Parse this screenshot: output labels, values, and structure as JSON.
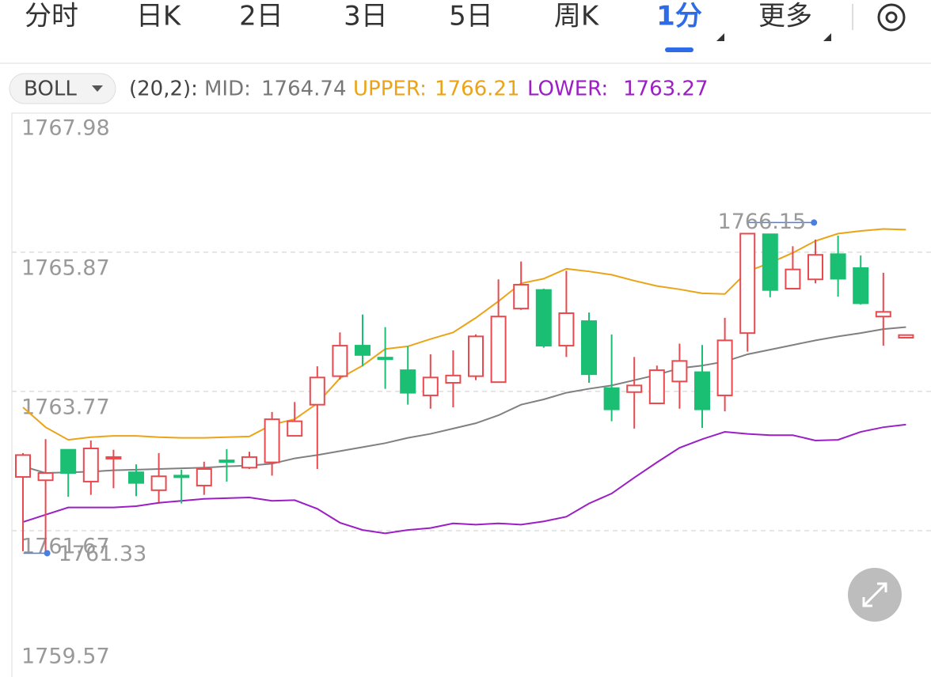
{
  "tabs": [
    "分时",
    "日K",
    "2日",
    "3日",
    "5日",
    "周K",
    "1分",
    "更多"
  ],
  "active_tab": 6,
  "chart_data": {
    "type": "candlestick",
    "indicator": "BOLL",
    "params": "(20,2):",
    "up_color": "#e84a4f",
    "down_color": "#1bbf73",
    "ylim": [
      1759.57,
      1767.98
    ],
    "yticks": [
      1767.98,
      1765.87,
      1763.77,
      1761.67,
      1759.57
    ],
    "grid": true,
    "open": [
      1762.48,
      1762.43,
      1762.89,
      1762.41,
      1762.76,
      1762.55,
      1762.28,
      1762.5,
      1762.35,
      1762.73,
      1762.62,
      1762.7,
      1763.1,
      1763.57,
      1764.0,
      1764.46,
      1764.28,
      1764.09,
      1763.71,
      1763.9,
      1764.0,
      1763.91,
      1765.02,
      1765.3,
      1764.46,
      1764.83,
      1763.82,
      1763.76,
      1763.59,
      1763.92,
      1764.06,
      1763.71,
      1764.65,
      1766.14,
      1765.32,
      1765.46,
      1765.84,
      1765.63,
      1764.9,
      1764.58
    ],
    "high": [
      1762.84,
      1763.05,
      1762.89,
      1763.03,
      1762.89,
      1762.67,
      1762.84,
      1762.59,
      1762.71,
      1762.9,
      1762.86,
      1763.46,
      1763.61,
      1764.15,
      1764.66,
      1764.93,
      1764.74,
      1764.45,
      1764.33,
      1764.39,
      1764.63,
      1765.46,
      1765.73,
      1765.32,
      1765.59,
      1764.96,
      1764.63,
      1764.29,
      1764.16,
      1764.49,
      1764.47,
      1764.88,
      1766.15,
      1766.14,
      1765.96,
      1766.06,
      1766.12,
      1765.82,
      1765.56,
      1764.62
    ],
    "low": [
      1761.36,
      1761.33,
      1762.18,
      1762.21,
      1762.31,
      1762.19,
      1762.1,
      1762.08,
      1762.21,
      1762.41,
      1762.6,
      1762.5,
      1763.1,
      1762.6,
      1763.95,
      1764.15,
      1763.81,
      1763.57,
      1763.51,
      1763.53,
      1763.94,
      1763.91,
      1765.0,
      1764.43,
      1764.29,
      1763.9,
      1763.32,
      1763.21,
      1763.59,
      1763.51,
      1763.22,
      1763.47,
      1764.37,
      1765.19,
      1765.32,
      1765.4,
      1765.2,
      1765.08,
      1764.46,
      1764.58
    ],
    "close": [
      1762.81,
      1762.54,
      1762.54,
      1762.91,
      1762.78,
      1762.39,
      1762.49,
      1762.49,
      1762.6,
      1762.72,
      1762.78,
      1763.35,
      1763.32,
      1763.98,
      1764.46,
      1764.32,
      1764.27,
      1763.75,
      1763.98,
      1764.01,
      1764.6,
      1764.9,
      1765.38,
      1764.46,
      1764.95,
      1764.03,
      1763.5,
      1763.86,
      1764.09,
      1764.23,
      1763.5,
      1764.54,
      1766.15,
      1765.3,
      1765.61,
      1765.83,
      1765.47,
      1765.1,
      1764.97,
      1764.62
    ],
    "series": [
      {
        "name": "MID:",
        "color": "#808080",
        "values": [
          1762.64,
          1762.54,
          1762.55,
          1762.56,
          1762.58,
          1762.59,
          1762.6,
          1762.61,
          1762.62,
          1762.64,
          1762.65,
          1762.68,
          1762.76,
          1762.81,
          1762.87,
          1762.93,
          1762.99,
          1763.07,
          1763.13,
          1763.21,
          1763.29,
          1763.41,
          1763.57,
          1763.65,
          1763.75,
          1763.81,
          1763.86,
          1763.94,
          1764.02,
          1764.12,
          1764.16,
          1764.22,
          1764.33,
          1764.4,
          1764.47,
          1764.54,
          1764.6,
          1764.65,
          1764.71,
          1764.74
        ]
      },
      {
        "name": "UPPER:",
        "color": "#eba417",
        "values": [
          1763.53,
          1763.23,
          1763.04,
          1763.08,
          1763.1,
          1763.1,
          1763.08,
          1763.07,
          1763.07,
          1763.08,
          1763.09,
          1763.27,
          1763.35,
          1763.59,
          1763.97,
          1764.16,
          1764.41,
          1764.45,
          1764.56,
          1764.66,
          1764.88,
          1765.13,
          1765.4,
          1765.47,
          1765.62,
          1765.58,
          1765.53,
          1765.44,
          1765.36,
          1765.31,
          1765.25,
          1765.24,
          1765.58,
          1765.71,
          1765.86,
          1766.04,
          1766.15,
          1766.19,
          1766.22,
          1766.21
        ]
      },
      {
        "name": "LOWER:",
        "color": "#9b1fc4",
        "values": [
          1761.8,
          1761.91,
          1762.02,
          1762.02,
          1762.02,
          1762.04,
          1762.09,
          1762.12,
          1762.15,
          1762.16,
          1762.17,
          1762.12,
          1762.13,
          1762.0,
          1761.79,
          1761.68,
          1761.63,
          1761.68,
          1761.71,
          1761.78,
          1761.76,
          1761.78,
          1761.76,
          1761.81,
          1761.88,
          1762.08,
          1762.23,
          1762.47,
          1762.7,
          1762.92,
          1763.05,
          1763.16,
          1763.13,
          1763.11,
          1763.11,
          1763.03,
          1763.04,
          1763.16,
          1763.23,
          1763.27
        ]
      }
    ]
  }
}
